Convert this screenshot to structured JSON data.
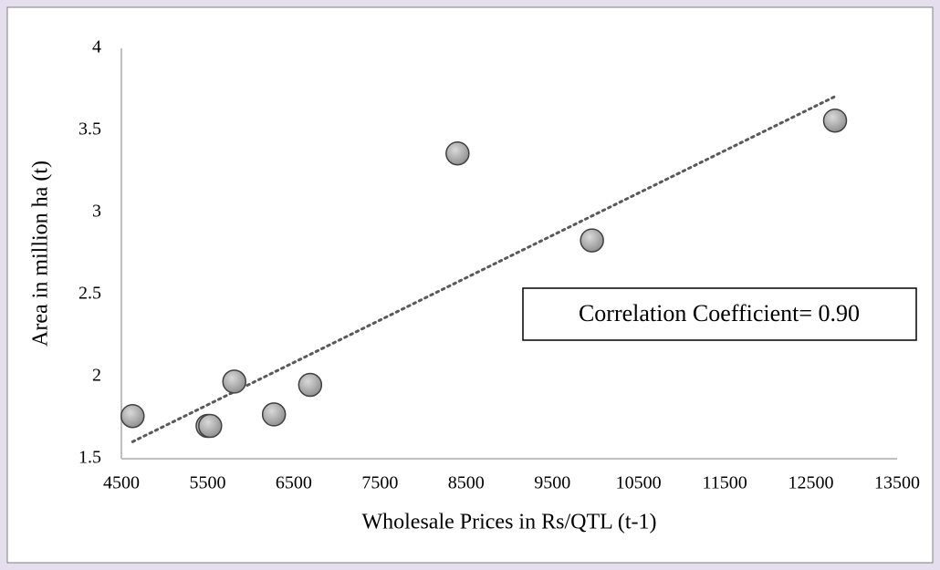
{
  "chart_data": {
    "type": "scatter",
    "x_label": "Wholesale Prices in Rs/QTL (t-1)",
    "y_label": "Area in million ha (t)",
    "annotation": "Correlation Coefficient= 0.90",
    "x": [
      4630,
      5500,
      5530,
      5810,
      6270,
      6690,
      8400,
      9960,
      12780
    ],
    "values": [
      1.76,
      1.7,
      1.7,
      1.97,
      1.77,
      1.95,
      3.36,
      2.83,
      3.56
    ],
    "color": "#a6a6a6",
    "trendline": "linear",
    "xlim": [
      4500,
      13500
    ],
    "xticks": [
      4500,
      5500,
      6500,
      7500,
      8500,
      9500,
      10500,
      11500,
      12500,
      13500
    ],
    "ylim": [
      1.5,
      4
    ],
    "yticks": [
      1.5,
      2,
      2.5,
      3,
      3.5,
      4
    ],
    "grid": false
  }
}
